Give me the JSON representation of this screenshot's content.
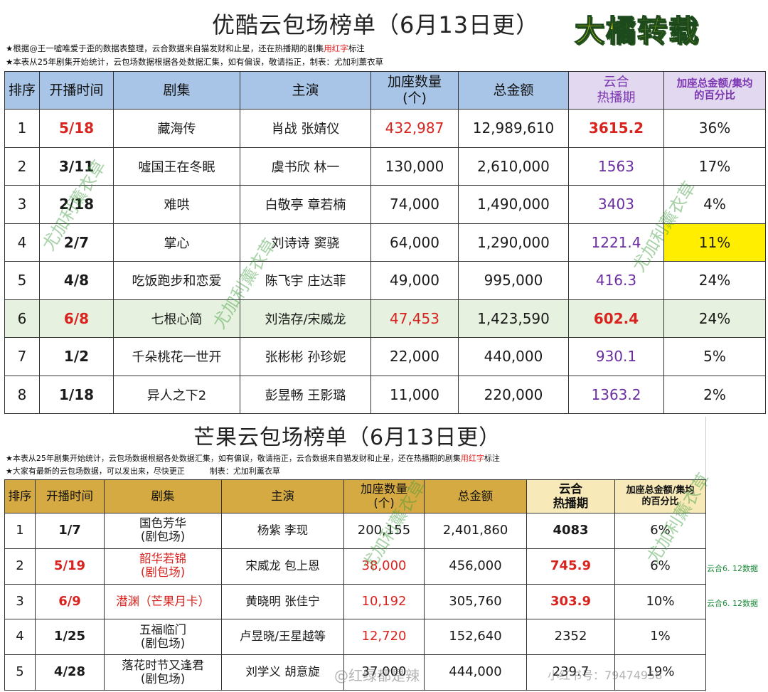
{
  "header": {
    "title1": "优酷云包场榜单（6月13日更）",
    "badge": "大橘转载",
    "note1_a": "★根据@王一噓唯爱于歪的数据表整理，云合数据来自猫发财和止星，还在热播期的剧集",
    "note1_red": "用红字",
    "note1_b": "标注",
    "note2": "★本表从25年剧集开始统计，云包场数据根据各处数据汇集，如有偏误，敬请指正，制表：尤加利薰衣草"
  },
  "table1": {
    "headers": [
      "排序",
      "开播时间",
      "剧集",
      "主演",
      "加座数量\n(个)",
      "总金额",
      "云合\n热播期",
      "加座总金额/集均\n的百分比"
    ],
    "rows": [
      {
        "rank": "1",
        "date": "5/18",
        "drama": "藏海传",
        "cast": "肖战 张婧仪",
        "seats": "432,987",
        "total": "12,989,610",
        "yunhe": "3615.2",
        "pct": "36%"
      },
      {
        "rank": "2",
        "date": "3/11",
        "drama": "噓国王在冬眠",
        "cast": "虞书欣  林一",
        "seats": "130,000",
        "total": "2,610,000",
        "yunhe": "1563",
        "pct": "17%"
      },
      {
        "rank": "3",
        "date": "2/18",
        "drama": "难哄",
        "cast": "白敬亭  章若楠",
        "seats": "74,000",
        "total": "1,490,000",
        "yunhe": "3403",
        "pct": "4%"
      },
      {
        "rank": "4",
        "date": "2/7",
        "drama": "掌心",
        "cast": "刘诗诗  窦骁",
        "seats": "64,000",
        "total": "1,290,000",
        "yunhe": "1221.4",
        "pct": "11%"
      },
      {
        "rank": "5",
        "date": "4/8",
        "drama": "吃饭跑步和恋爱",
        "cast": "陈飞宇  庄达菲",
        "seats": "49,000",
        "total": "995,000",
        "yunhe": "416.3",
        "pct": "24%"
      },
      {
        "rank": "6",
        "date": "6/8",
        "drama": "七根心简",
        "cast": "刘浩存/宋威龙",
        "seats": "47,453",
        "total": "1,423,590",
        "yunhe": "602.4",
        "pct": "24%"
      },
      {
        "rank": "7",
        "date": "1/2",
        "drama": "千朵桃花一世开",
        "cast": "张彬彬  孙珍妮",
        "seats": "22,000",
        "total": "440,000",
        "yunhe": "930.1",
        "pct": "5%"
      },
      {
        "rank": "8",
        "date": "1/18",
        "drama": "异人之下2",
        "cast": "彭昱畅  王影璐",
        "seats": "11,000",
        "total": "220,000",
        "yunhe": "1363.2",
        "pct": "2%"
      }
    ]
  },
  "section2": {
    "title2": "芒果云包场榜单（6月13日更）",
    "note3_a": "★本表从25年剧集开始统计，云包场数据根据各处数据汇集，如有偏误，敬请指正，云合数据来自猫发财和止星，还在热播期的剧集",
    "note3_red": "用红字",
    "note3_b": "标注",
    "note4": "★大家有最新的云包场数据，可以发出来，尽快更正          制表：尤加利薰衣草",
    "side1": "云合6. 12数据",
    "side2": "云合6. 12数据"
  },
  "table2": {
    "headers": [
      "排序",
      "开播时间",
      "剧集",
      "主演",
      "加座数量\n(个)",
      "总金额",
      "云合\n热播期",
      "加座总金额/集均\n的百分比"
    ],
    "rows": [
      {
        "rank": "1",
        "date": "1/7",
        "drama": "国色芳华\n(剧包场)",
        "cast": "杨紫   李现",
        "seats": "200,155",
        "total": "2,401,860",
        "yunhe": "4083",
        "pct": "6%"
      },
      {
        "rank": "2",
        "date": "5/19",
        "drama": "韶华若锦\n(剧包场)",
        "cast": "宋威龙  包上恩",
        "seats": "38,000",
        "total": "456,000",
        "yunhe": "745.9",
        "pct": "6%"
      },
      {
        "rank": "3",
        "date": "6/9",
        "drama": "潜渊（芒果月卡）",
        "cast": "黄晓明  张佳宁",
        "seats": "10,192",
        "total": "305,760",
        "yunhe": "303.9",
        "pct": "10%"
      },
      {
        "rank": "4",
        "date": "1/25",
        "drama": "五福临门\n(剧包场)",
        "cast": "卢昱晓/王星越等",
        "seats": "12,720",
        "total": "152,640",
        "yunhe": "2352",
        "pct": "1%"
      },
      {
        "rank": "5",
        "date": "4/28",
        "drama": "落花时节又逢君\n(剧包场)",
        "cast": "刘学义  胡意旋",
        "seats": "37,000",
        "total": "444,000",
        "yunhe": "239.7",
        "pct": "19%"
      }
    ]
  },
  "watermarks": {
    "green": "尤加利薰衣草",
    "bottom": "@红绿都是辣",
    "bottom2": "小红书号：79474958"
  }
}
